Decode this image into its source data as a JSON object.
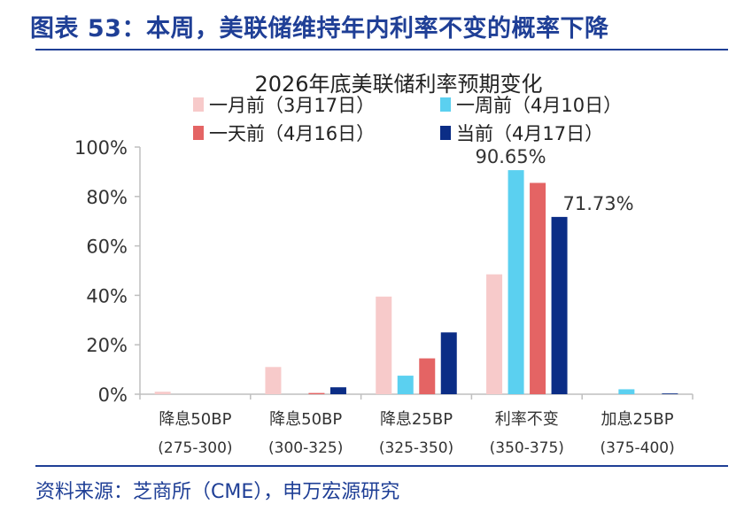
{
  "figure": {
    "title": "图表 53：本周，美联储维持年内利率不变的概率下降",
    "source": "资料来源：芝商所（CME），申万宏源研究"
  },
  "colors": {
    "brand": "#1f3f96",
    "axis": "#bfbfbf",
    "text": "#333333"
  },
  "chart_data": {
    "type": "bar",
    "title": "2026年底美联储利率预期变化",
    "categories": [
      [
        "降息50BP",
        "(275-300)"
      ],
      [
        "降息50BP",
        "(300-325)"
      ],
      [
        "降息25BP",
        "(325-350)"
      ],
      [
        "利率不变",
        "(350-375)"
      ],
      [
        "加息25BP",
        "(375-400)"
      ]
    ],
    "ylim": [
      0,
      100
    ],
    "yticks": [
      "0%",
      "20%",
      "40%",
      "60%",
      "80%",
      "100%"
    ],
    "legend_position": "top",
    "series": [
      {
        "name": "一月前（3月17日）",
        "color": "#f7caca",
        "values": [
          1.0,
          11.0,
          39.5,
          48.5,
          0
        ]
      },
      {
        "name": "一周前（4月10日）",
        "color": "#5bd0f0",
        "values": [
          0,
          0,
          7.5,
          90.65,
          2.0
        ]
      },
      {
        "name": "一天前（4月16日）",
        "color": "#e46464",
        "values": [
          0,
          0.5,
          14.5,
          85.5,
          0
        ]
      },
      {
        "name": "当前（4月17日）",
        "color": "#0b2d86",
        "values": [
          0,
          2.8,
          25.0,
          71.73,
          0.3
        ]
      }
    ],
    "annotations": [
      {
        "text": "90.65%",
        "series": 1,
        "category": 3
      },
      {
        "text": "71.73%",
        "series": 3,
        "category": 3
      }
    ]
  }
}
